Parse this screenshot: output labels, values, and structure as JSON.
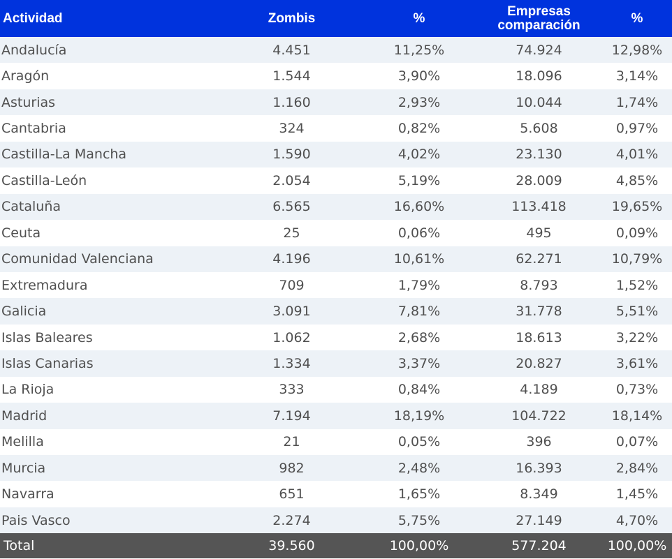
{
  "table": {
    "headers": [
      "Actividad",
      "Zombis",
      "%",
      [
        "Empresas",
        "comparación"
      ],
      "%"
    ],
    "rows": [
      [
        "Andalucía",
        "4.451",
        "11,25%",
        "74.924",
        "12,98%"
      ],
      [
        "Aragón",
        "1.544",
        "3,90%",
        "18.096",
        "3,14%"
      ],
      [
        "Asturias",
        "1.160",
        "2,93%",
        "10.044",
        "1,74%"
      ],
      [
        "Cantabria",
        "324",
        "0,82%",
        "5.608",
        "0,97%"
      ],
      [
        "Castilla-La Mancha",
        "1.590",
        "4,02%",
        "23.130",
        "4,01%"
      ],
      [
        "Castilla-León",
        "2.054",
        "5,19%",
        "28.009",
        "4,85%"
      ],
      [
        "Cataluña",
        "6.565",
        "16,60%",
        "113.418",
        "19,65%"
      ],
      [
        "Ceuta",
        "25",
        "0,06%",
        "495",
        "0,09%"
      ],
      [
        "Comunidad Valenciana",
        "4.196",
        "10,61%",
        "62.271",
        "10,79%"
      ],
      [
        "Extremadura",
        "709",
        "1,79%",
        "8.793",
        "1,52%"
      ],
      [
        "Galicia",
        "3.091",
        "7,81%",
        "31.778",
        "5,51%"
      ],
      [
        "Islas Baleares",
        "1.062",
        "2,68%",
        "18.613",
        "3,22%"
      ],
      [
        "Islas Canarias",
        "1.334",
        "3,37%",
        "20.827",
        "3,61%"
      ],
      [
        "La Rioja",
        "333",
        "0,84%",
        "4.189",
        "0,73%"
      ],
      [
        "Madrid",
        "7.194",
        "18,19%",
        "104.722",
        "18,14%"
      ],
      [
        "Melilla",
        "21",
        "0,05%",
        "396",
        "0,07%"
      ],
      [
        "Murcia",
        "982",
        "2,48%",
        "16.393",
        "2,84%"
      ],
      [
        "Navarra",
        "651",
        "1,65%",
        "8.349",
        "1,45%"
      ],
      [
        "Pais Vasco",
        "2.274",
        "5,75%",
        "27.149",
        "4,70%"
      ]
    ],
    "total": [
      "Total",
      "39.560",
      "100,00%",
      "577.204",
      "100,00%"
    ]
  },
  "colors": {
    "header_bg": "#0033dd",
    "row_alt_bg": "#edf2f7",
    "total_bg": "#555555"
  }
}
